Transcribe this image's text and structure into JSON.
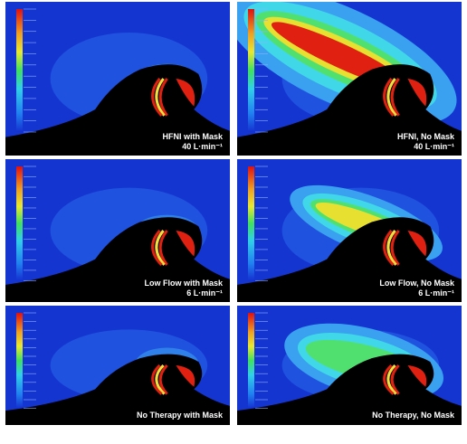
{
  "panels": [
    {
      "title": "HFNI with Mask",
      "flow": "40 L·min⁻¹"
    },
    {
      "title": "HFNI, No Mask",
      "flow": "40 L·min⁻¹"
    },
    {
      "title": "Low Flow with Mask",
      "flow": "6 L·min⁻¹"
    },
    {
      "title": "Low Flow, No Mask",
      "flow": "6 L·min⁻¹"
    },
    {
      "title": "No Therapy with Mask"
    },
    {
      "title": "No Therapy, No Mask"
    }
  ]
}
